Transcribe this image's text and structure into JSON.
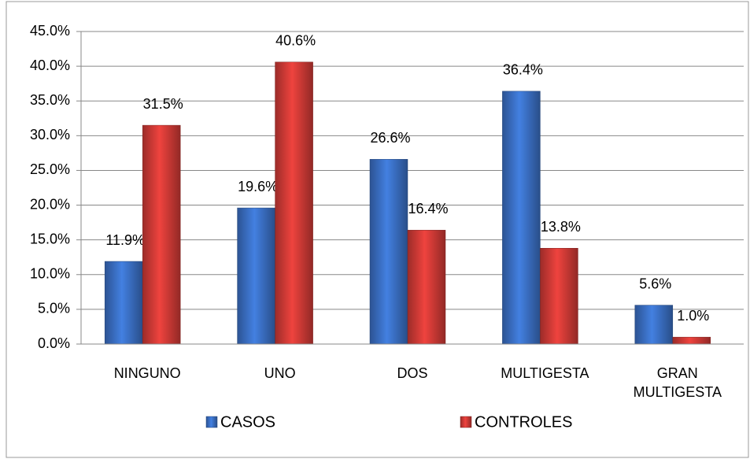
{
  "chart_data": {
    "type": "bar",
    "categories": [
      "NINGUNO",
      "UNO",
      "DOS",
      "MULTIGESTA",
      "GRAN MULTIGESTA"
    ],
    "series": [
      {
        "name": "CASOS",
        "color": "#3a6fc4",
        "values": [
          11.9,
          19.6,
          26.6,
          36.4,
          5.6
        ],
        "value_labels": [
          "11.9%",
          "19.6%",
          "26.6%",
          "36.4%",
          "5.6%"
        ]
      },
      {
        "name": "CONTROLES",
        "color": "#d03a36",
        "values": [
          31.5,
          40.6,
          16.4,
          13.8,
          1.0
        ],
        "value_labels": [
          "31.5%",
          "40.6%",
          "16.4%",
          "13.8%",
          "1.0%"
        ]
      }
    ],
    "ylim": [
      0,
      45
    ],
    "yticks": [
      {
        "value": 0,
        "label": "0.0%"
      },
      {
        "value": 5,
        "label": "5.0%"
      },
      {
        "value": 10,
        "label": "10.0%"
      },
      {
        "value": 15,
        "label": "15.0%"
      },
      {
        "value": 20,
        "label": "20.0%"
      },
      {
        "value": 25,
        "label": "25.0%"
      },
      {
        "value": 30,
        "label": "30.0%"
      },
      {
        "value": 35,
        "label": "35.0%"
      },
      {
        "value": 40,
        "label": "40.0%"
      },
      {
        "value": 45,
        "label": "45.0%"
      }
    ],
    "grid": true,
    "legend": "bottom"
  }
}
